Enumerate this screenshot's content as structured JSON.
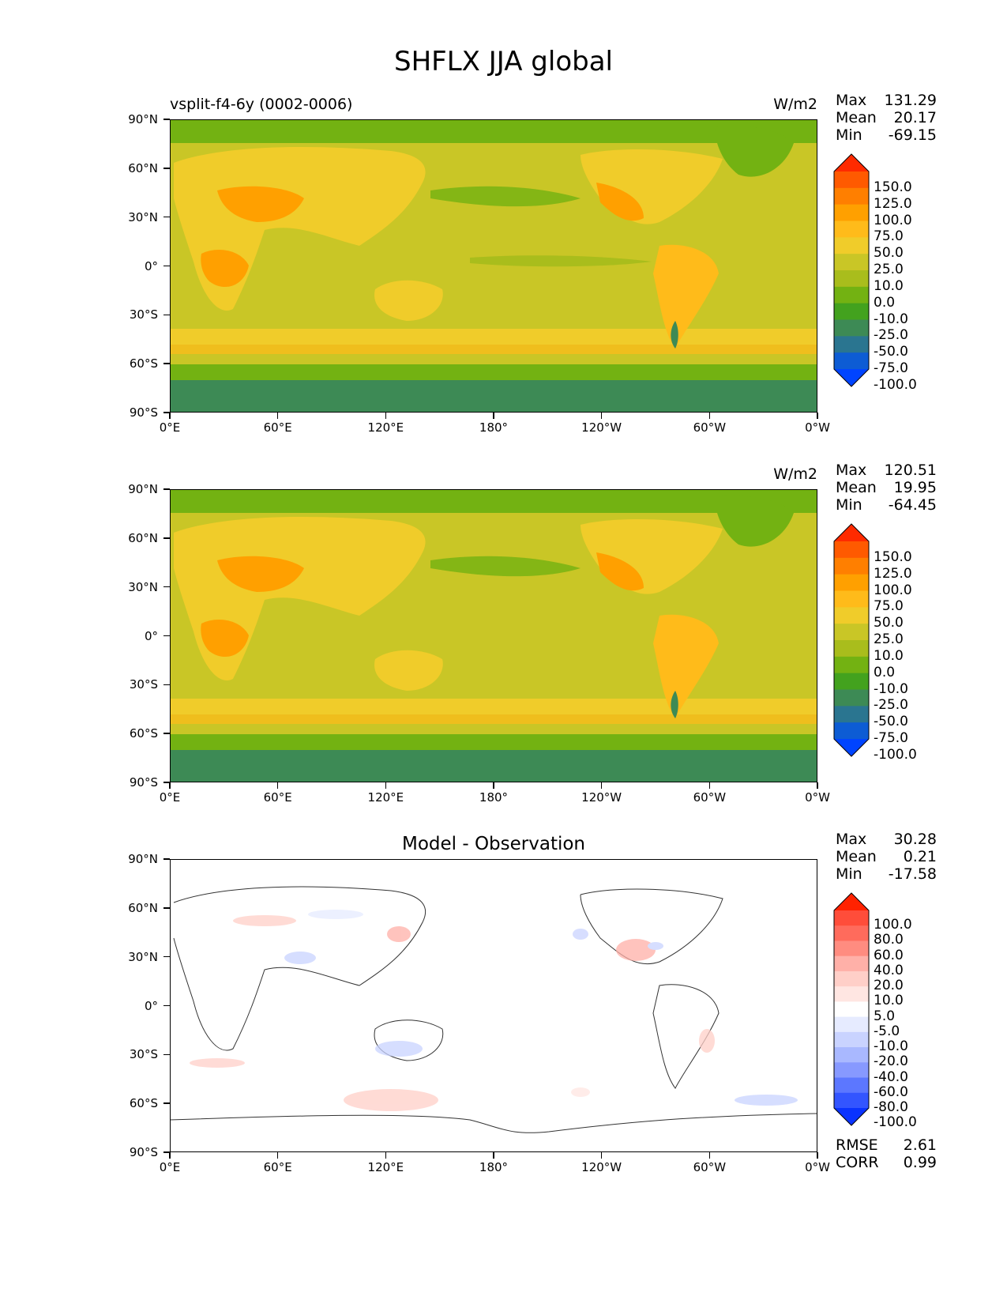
{
  "figure": {
    "title": "SHFLX JJA global"
  },
  "axes": {
    "y_ticks": [
      "90°N",
      "60°N",
      "30°N",
      "0°",
      "30°S",
      "60°S",
      "90°S"
    ],
    "x_ticks": [
      "0°E",
      "60°E",
      "120°E",
      "180°",
      "120°W",
      "60°W",
      "0°W"
    ]
  },
  "panels": [
    {
      "id": "test",
      "title_left": "vsplit-f4-6y (0002-0006)",
      "title_center": "",
      "units": "W/m2",
      "stats": {
        "max_label": "Max",
        "max": "131.29",
        "mean_label": "Mean",
        "mean": "20.17",
        "min_label": "Min",
        "min": "-69.15"
      },
      "colorbar": {
        "labels": [
          "150.0",
          "125.0",
          "100.0",
          "75.0",
          "50.0",
          "25.0",
          "10.0",
          "0.0",
          "-10.0",
          "-25.0",
          "-50.0",
          "-75.0",
          "-100.0"
        ],
        "colors": [
          "#ff2a00",
          "#ff5a00",
          "#ff7f00",
          "#ffa000",
          "#ffbb1a",
          "#f0cc2a",
          "#c9c626",
          "#a9bd1c",
          "#73b212",
          "#43a21e",
          "#3d8a55",
          "#2a7590",
          "#0d5cd4",
          "#0044ff"
        ]
      }
    },
    {
      "id": "reference",
      "title_left": "",
      "title_center": "",
      "units": "W/m2",
      "stats": {
        "max_label": "Max",
        "max": "120.51",
        "mean_label": "Mean",
        "mean": "19.95",
        "min_label": "Min",
        "min": "-64.45"
      },
      "colorbar": {
        "labels": [
          "150.0",
          "125.0",
          "100.0",
          "75.0",
          "50.0",
          "25.0",
          "10.0",
          "0.0",
          "-10.0",
          "-25.0",
          "-50.0",
          "-75.0",
          "-100.0"
        ],
        "colors": [
          "#ff2a00",
          "#ff5a00",
          "#ff7f00",
          "#ffa000",
          "#ffbb1a",
          "#f0cc2a",
          "#c9c626",
          "#a9bd1c",
          "#73b212",
          "#43a21e",
          "#3d8a55",
          "#2a7590",
          "#0d5cd4",
          "#0044ff"
        ]
      }
    },
    {
      "id": "difference",
      "title_left": "",
      "title_center": "Model - Observation",
      "units": "",
      "stats": {
        "max_label": "Max",
        "max": "30.28",
        "mean_label": "Mean",
        "mean": "0.21",
        "min_label": "Min",
        "min": "-17.58"
      },
      "colorbar": {
        "labels": [
          "100.0",
          "80.0",
          "60.0",
          "40.0",
          "20.0",
          "10.0",
          "5.0",
          "-5.0",
          "-10.0",
          "-20.0",
          "-40.0",
          "-60.0",
          "-80.0",
          "-100.0"
        ],
        "colors": [
          "#ff2200",
          "#ff4d3a",
          "#ff6b5c",
          "#ff8c80",
          "#ffb0a8",
          "#ffcfc8",
          "#ffe6e2",
          "#ffffff",
          "#e6ebff",
          "#c9d3ff",
          "#a9b8ff",
          "#8799ff",
          "#5c77ff",
          "#3355ff",
          "#0a33ff"
        ]
      },
      "metrics": {
        "rmse_label": "RMSE",
        "rmse": "2.61",
        "corr_label": "CORR",
        "corr": "0.99"
      }
    }
  ]
}
